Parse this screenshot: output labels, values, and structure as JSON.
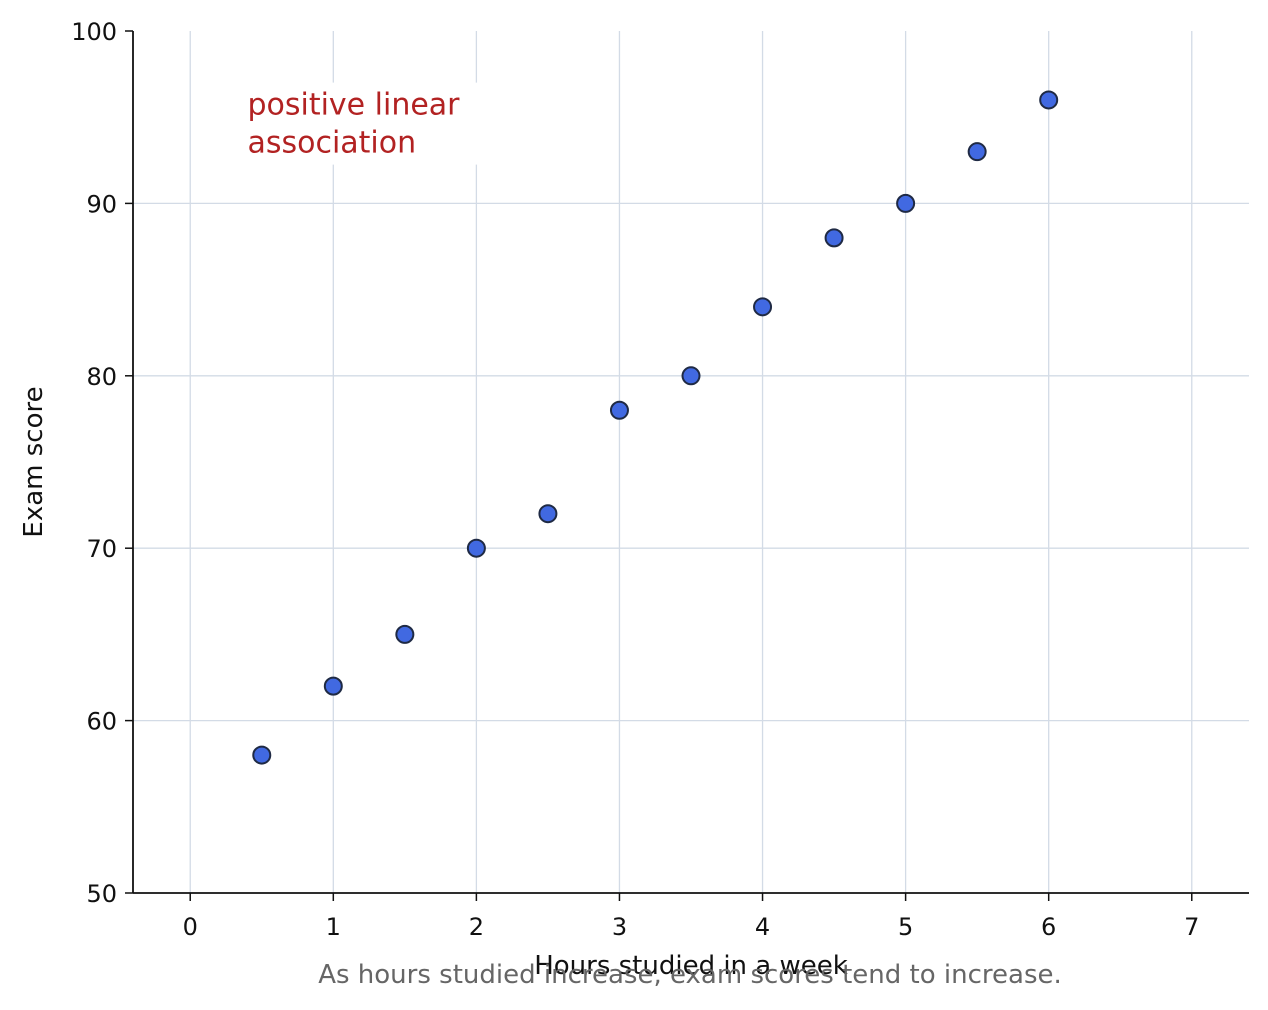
{
  "chart_data": {
    "type": "scatter",
    "title": "",
    "xlabel": "Hours studied in a week",
    "ylabel": "Exam score",
    "xlim": [
      -0.4,
      7.4
    ],
    "ylim": [
      50,
      100
    ],
    "x_ticks": [
      "0",
      "1",
      "2",
      "3",
      "4",
      "5",
      "6",
      "7"
    ],
    "y_ticks": [
      "50",
      "60",
      "70",
      "80",
      "90",
      "100"
    ],
    "grid": true,
    "series": [
      {
        "x": [
          0.5,
          1.0,
          1.5,
          2.0,
          2.5,
          3.0,
          3.5,
          4.0,
          4.5,
          5.0,
          5.5,
          6.0
        ],
        "y": [
          58,
          62,
          65,
          70,
          72,
          78,
          80,
          84,
          88,
          90,
          93,
          96
        ]
      }
    ],
    "annotation": {
      "lines": [
        "positive linear",
        "association"
      ],
      "x": 0.4,
      "y": 96.6
    },
    "caption": "As hours studied increase, exam scores tend to increase.",
    "colors": {
      "marker_fill": "#4169e1",
      "marker_edge": "#1f2a44",
      "grid": "#d3dbe6",
      "annotation": "#b22222",
      "caption": "#666666",
      "axis": "#111111"
    }
  }
}
